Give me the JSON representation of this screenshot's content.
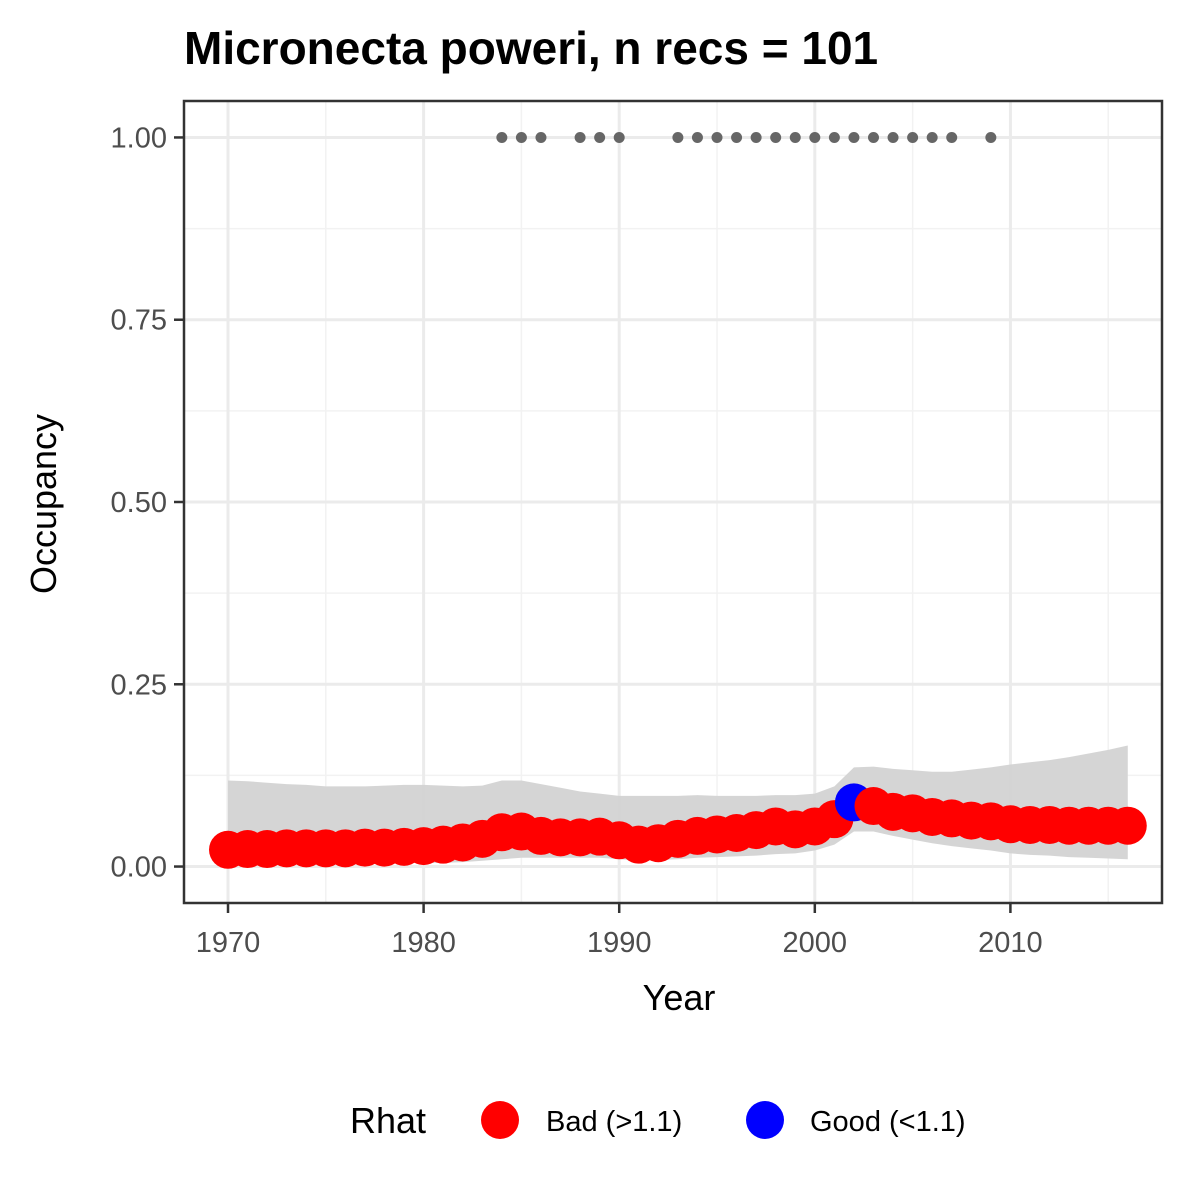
{
  "chart_data": {
    "type": "line",
    "title": "Micronecta poweri, n recs = 101",
    "xlabel": "Year",
    "ylabel": "Occupancy",
    "xlim": [
      1967.75,
      2017.75
    ],
    "ylim": [
      -0.05,
      1.05
    ],
    "x_ticks": [
      1970,
      1980,
      1990,
      2000,
      2010
    ],
    "y_ticks": [
      0.0,
      0.25,
      0.5,
      0.75,
      1.0
    ],
    "y_tick_labels": [
      "0.00",
      "0.25",
      "0.50",
      "0.75",
      "1.00"
    ],
    "grid": true,
    "legend": {
      "title": "Rhat",
      "position": "bottom",
      "entries": [
        {
          "label": "Bad (>1.1)",
          "color": "#ff0000"
        },
        {
          "label": "Good (<1.1)",
          "color": "#0000ff"
        }
      ]
    },
    "colors": {
      "bad": "#ff0000",
      "good": "#0000ff",
      "ribbon": "#d3d3d3",
      "records": "#666666"
    },
    "series": [
      {
        "x": [
          1970,
          1971,
          1972,
          1973,
          1974,
          1975,
          1976,
          1977,
          1978,
          1979,
          1980,
          1981,
          1982,
          1983,
          1984,
          1985,
          1986,
          1987,
          1988,
          1989,
          1990,
          1991,
          1992,
          1993,
          1994,
          1995,
          1996,
          1997,
          1998,
          1999,
          2000,
          2001,
          2002,
          2003,
          2004,
          2005,
          2006,
          2007,
          2008,
          2009,
          2010,
          2011,
          2012,
          2013,
          2014,
          2015,
          2016
        ],
        "values": [
          0.023,
          0.024,
          0.024,
          0.025,
          0.025,
          0.025,
          0.025,
          0.026,
          0.026,
          0.027,
          0.028,
          0.03,
          0.033,
          0.038,
          0.047,
          0.048,
          0.042,
          0.04,
          0.04,
          0.041,
          0.036,
          0.03,
          0.032,
          0.038,
          0.042,
          0.044,
          0.046,
          0.05,
          0.055,
          0.051,
          0.055,
          0.065,
          0.088,
          0.083,
          0.075,
          0.073,
          0.068,
          0.066,
          0.063,
          0.062,
          0.058,
          0.057,
          0.057,
          0.056,
          0.056,
          0.056,
          0.056
        ],
        "lower": [
          0.005,
          0.005,
          0.005,
          0.005,
          0.005,
          0.005,
          0.005,
          0.005,
          0.005,
          0.005,
          0.005,
          0.005,
          0.006,
          0.008,
          0.01,
          0.012,
          0.012,
          0.012,
          0.012,
          0.012,
          0.01,
          0.008,
          0.009,
          0.01,
          0.012,
          0.013,
          0.014,
          0.015,
          0.017,
          0.018,
          0.022,
          0.03,
          0.048,
          0.048,
          0.042,
          0.037,
          0.032,
          0.028,
          0.025,
          0.022,
          0.018,
          0.016,
          0.015,
          0.013,
          0.012,
          0.011,
          0.01
        ],
        "upper": [
          0.118,
          0.117,
          0.115,
          0.113,
          0.112,
          0.11,
          0.11,
          0.11,
          0.111,
          0.112,
          0.112,
          0.111,
          0.11,
          0.111,
          0.118,
          0.118,
          0.113,
          0.108,
          0.103,
          0.1,
          0.097,
          0.097,
          0.097,
          0.097,
          0.098,
          0.097,
          0.097,
          0.097,
          0.098,
          0.098,
          0.1,
          0.11,
          0.136,
          0.137,
          0.134,
          0.132,
          0.13,
          0.13,
          0.133,
          0.136,
          0.14,
          0.143,
          0.146,
          0.15,
          0.155,
          0.16,
          0.166
        ],
        "rhat": [
          "bad",
          "bad",
          "bad",
          "bad",
          "bad",
          "bad",
          "bad",
          "bad",
          "bad",
          "bad",
          "bad",
          "bad",
          "bad",
          "bad",
          "bad",
          "bad",
          "bad",
          "bad",
          "bad",
          "bad",
          "bad",
          "bad",
          "bad",
          "bad",
          "bad",
          "bad",
          "bad",
          "bad",
          "bad",
          "bad",
          "bad",
          "bad",
          "good",
          "bad",
          "bad",
          "bad",
          "bad",
          "bad",
          "bad",
          "bad",
          "bad",
          "bad",
          "bad",
          "bad",
          "bad",
          "bad",
          "bad"
        ]
      }
    ],
    "records": {
      "y": 1.0,
      "x": [
        1984,
        1985,
        1986,
        1988,
        1989,
        1990,
        1993,
        1994,
        1995,
        1996,
        1997,
        1998,
        1999,
        2000,
        2001,
        2002,
        2003,
        2004,
        2005,
        2006,
        2007,
        2009
      ]
    }
  }
}
